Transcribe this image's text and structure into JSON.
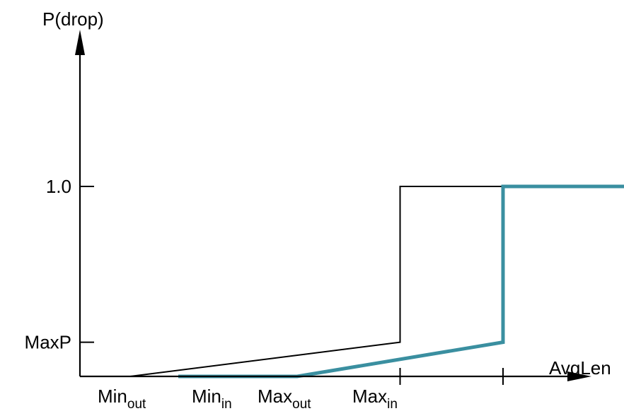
{
  "chart_data": {
    "type": "line",
    "axis": {
      "y_label": "P(drop)",
      "x_label": "AvgLen",
      "y_ticks": [
        {
          "label": "1.0",
          "value": 1.0
        },
        {
          "label": "MaxP",
          "value": 0.18
        }
      ],
      "x_ticks": [
        {
          "label": "Min",
          "sub": "out",
          "value": 1.0,
          "tick": false
        },
        {
          "label": "Min",
          "sub": "in",
          "value": 2.0,
          "tick": false
        },
        {
          "label": "Max",
          "sub": "out",
          "value": 3.0,
          "tick": true
        },
        {
          "label": "Max",
          "sub": "in",
          "value": 4.0,
          "tick": true
        }
      ],
      "xlim": [
        0,
        5.3
      ],
      "ylim": [
        0,
        1.75
      ]
    },
    "series": [
      {
        "color": "#000000",
        "points": [
          [
            0,
            0
          ],
          [
            1.0,
            0
          ],
          [
            3.0,
            0.18
          ],
          [
            3.0,
            1.0
          ],
          [
            5.3,
            1.0
          ]
        ]
      },
      {
        "color": "#3a8fa0",
        "points": [
          [
            1.0,
            0
          ],
          [
            1.5,
            0
          ],
          [
            2.0,
            0
          ],
          [
            4.0,
            0.18
          ],
          [
            4.0,
            1.0
          ],
          [
            5.3,
            1.0
          ]
        ]
      }
    ],
    "legend": "none",
    "grid": false
  }
}
